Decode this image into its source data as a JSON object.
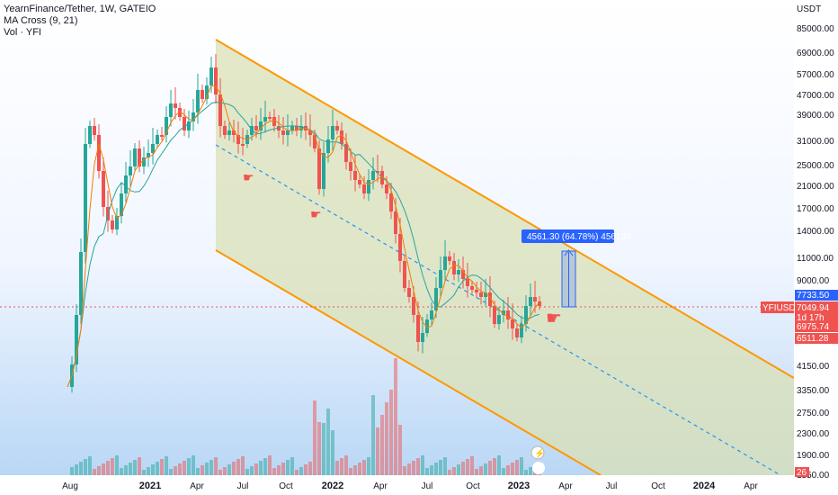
{
  "legend": {
    "symbol_line": "YearnFinance/Tether, 1W, GATEIO",
    "ma_line": "MA Cross (9, 21)",
    "vol_line": "Vol · YFI"
  },
  "price_axis": {
    "currency": "USDT",
    "labels": [
      "85000.00",
      "69000.00",
      "57000.00",
      "47000.00",
      "39000.00",
      "31000.00",
      "25000.00",
      "21000.00",
      "17000.00",
      "14000.00",
      "11000.00",
      "9000.00",
      "4150.00",
      "3350.00",
      "2750.00",
      "2300.00",
      "1900.00",
      "1550.00"
    ]
  },
  "price_tags": {
    "symbol_tag": "YFIUSDT",
    "high_tag": "7733.50",
    "last_price": "7049.94",
    "countdown": "1d 17h",
    "low_tag_1": "6975.74",
    "low_tag_2": "6511.28",
    "volume_tag": "26"
  },
  "time_axis": [
    "Aug",
    "2021",
    "Apr",
    "Jul",
    "Oct",
    "2022",
    "Apr",
    "Jul",
    "Oct",
    "2023",
    "Apr",
    "Jul",
    "Oct",
    "2024",
    "Apr"
  ],
  "measure_label": "4561.30 (64.78%) 456130",
  "colors": {
    "up": "#26a69a",
    "down": "#ef5350",
    "channel_line": "#ff9800",
    "channel_fill": "#e3e7c8",
    "measure": "#2962ff",
    "ma_fast": "#f57c00",
    "ma_slow": "#26a69a"
  }
}
